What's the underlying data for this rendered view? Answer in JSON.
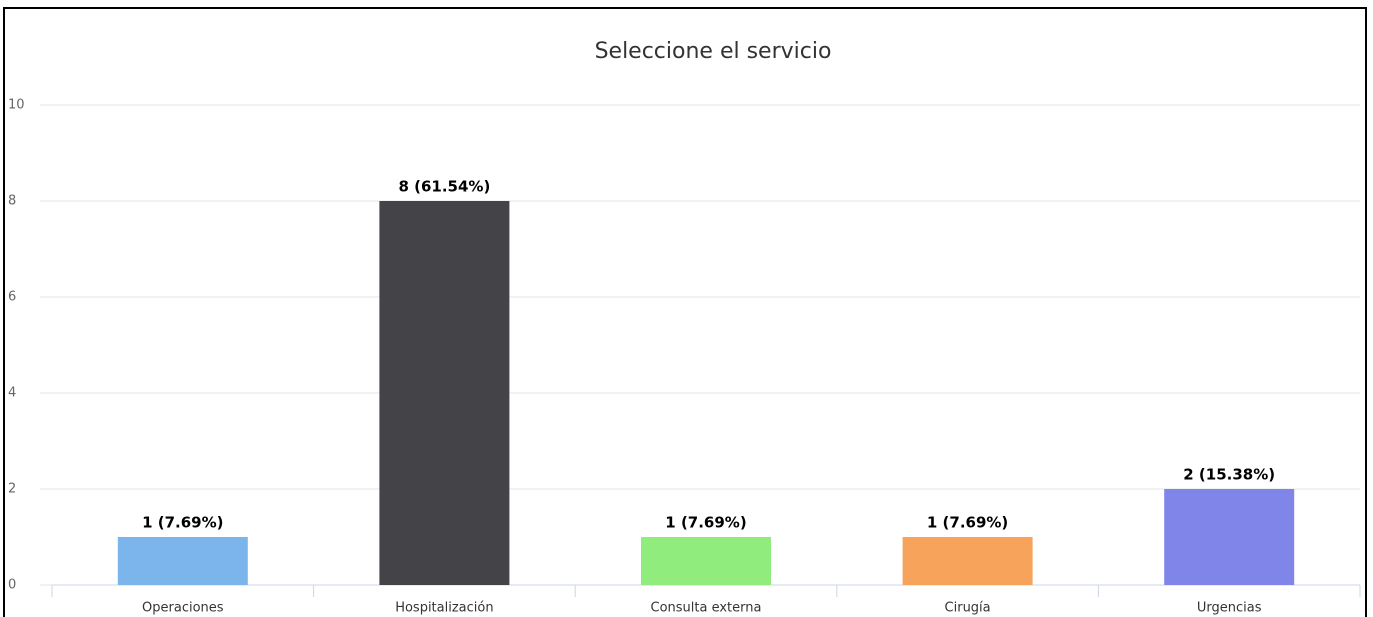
{
  "chart_data": {
    "type": "bar",
    "title": "Seleccione el servicio",
    "categories": [
      "Operaciones",
      "Hospitalización",
      "Consulta externa",
      "Cirugía",
      "Urgencias"
    ],
    "values": [
      1,
      8,
      1,
      1,
      2
    ],
    "value_labels": [
      "1 (7.69%)",
      "8 (61.54%)",
      "1 (7.69%)",
      "1 (7.69%)",
      "2 (15.38%)"
    ],
    "colors": [
      "#7cb5ec",
      "#434348",
      "#90ed7d",
      "#f7a35c",
      "#8085e9"
    ],
    "ylim": [
      0,
      10
    ],
    "yticks": [
      0,
      2,
      4,
      6,
      8,
      10
    ],
    "grid": true
  }
}
